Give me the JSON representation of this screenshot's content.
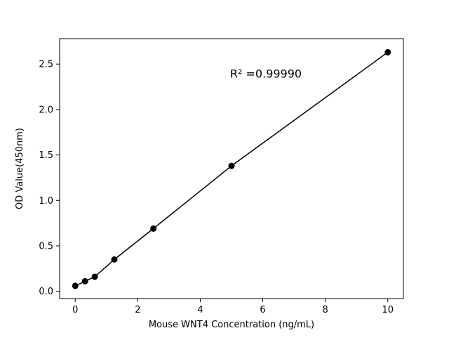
{
  "figure": {
    "background": "#ffffff",
    "foreground": "#000000"
  },
  "chart_data": {
    "type": "scatter",
    "x": [
      0,
      0.3125,
      0.625,
      1.25,
      2.5,
      5,
      10
    ],
    "y": [
      0.06,
      0.11,
      0.16,
      0.35,
      0.69,
      1.38,
      2.63
    ],
    "line": true,
    "marker": "circle",
    "marker_color": "#000000",
    "line_color": "#000000",
    "title": "",
    "xlabel": "Mouse WNT4 Concentration (ng/mL)",
    "ylabel": "OD Value(450nm)",
    "xlim": [
      -0.5,
      10.5
    ],
    "ylim": [
      -0.08,
      2.78
    ],
    "xticks": [
      0,
      2,
      4,
      6,
      8,
      10
    ],
    "xtick_labels": [
      "0",
      "2",
      "4",
      "6",
      "8",
      "10"
    ],
    "yticks": [
      0.0,
      0.5,
      1.0,
      1.5,
      2.0,
      2.5
    ],
    "ytick_labels": [
      "0.0",
      "0.5",
      "1.0",
      "1.5",
      "2.0",
      "2.5"
    ],
    "grid": false,
    "legend": null,
    "annotation": {
      "text": "R² =0.99990",
      "x": 6.1,
      "y": 2.35,
      "anchor": "middle",
      "fontsize": 16
    }
  }
}
